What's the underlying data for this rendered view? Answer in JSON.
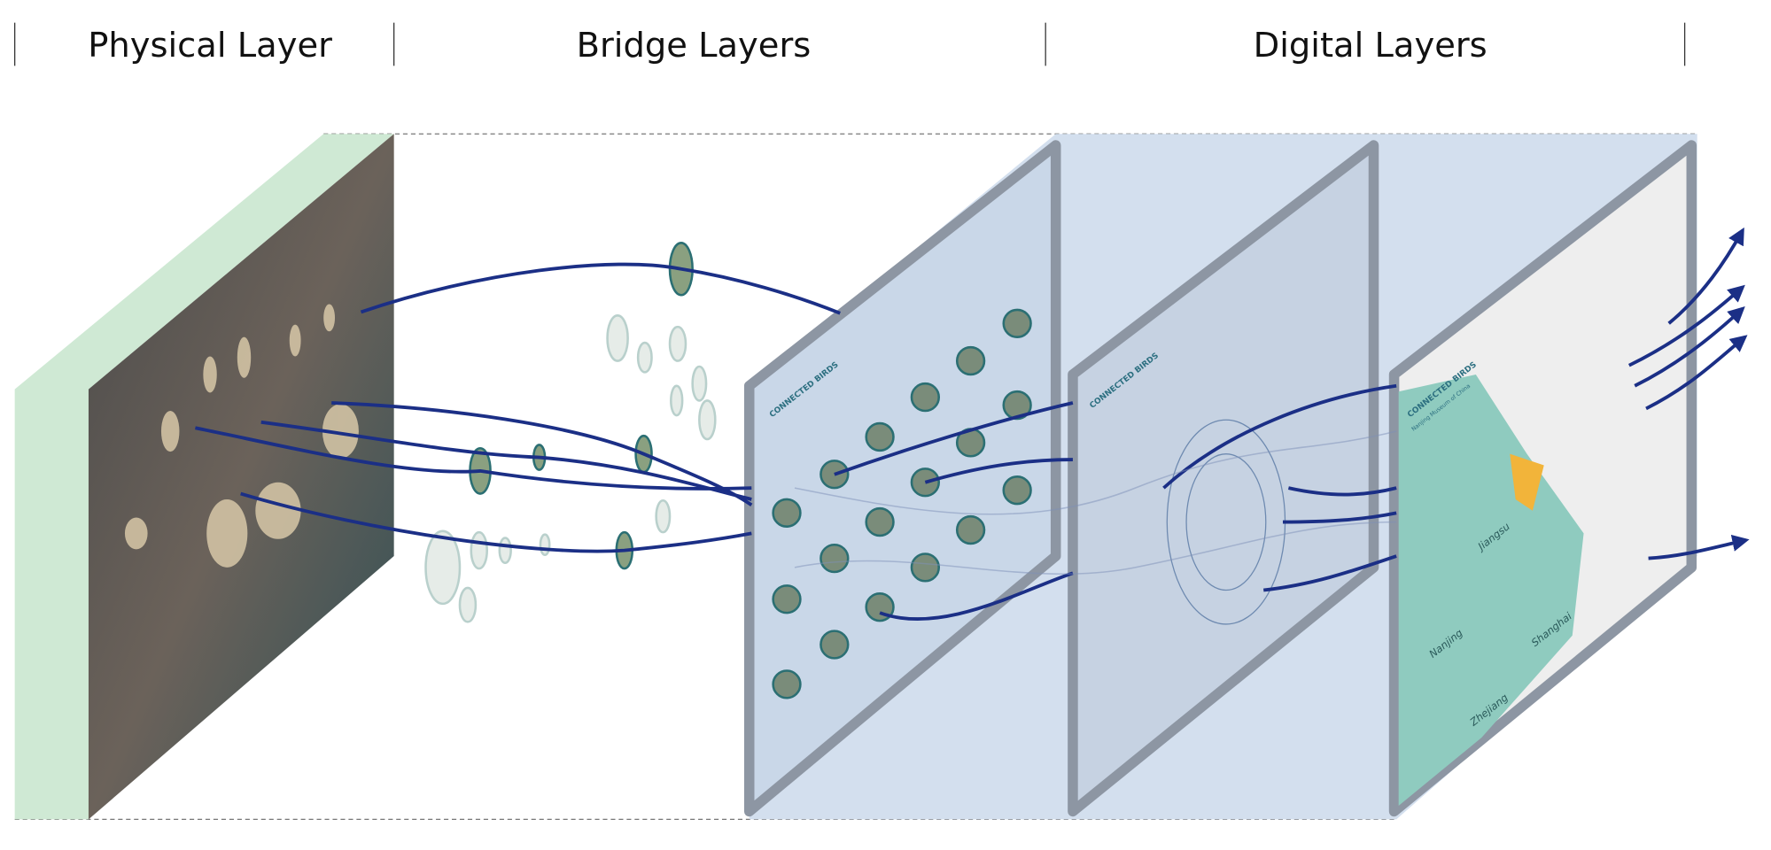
{
  "header": {
    "physical": "Physical Layer",
    "bridge": "Bridge Layers",
    "digital": "Digital Layers"
  },
  "tablets": {
    "title": "CONNECTED BIRDS",
    "subtitle": "Nanjing Museum of China"
  },
  "map": {
    "jiangsu": "Jiangsu",
    "shanghai": "Shanghai",
    "zhejiang": "Zhejiang",
    "nanjing": "Nanjing"
  }
}
